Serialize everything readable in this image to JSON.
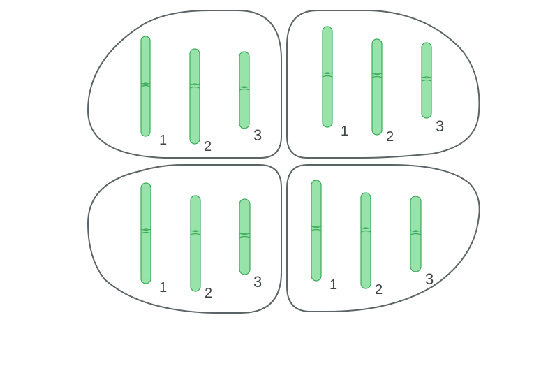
{
  "colors": {
    "cell_outline": "#5b6466",
    "chromosome_fill": "#98e3a9",
    "chromosome_stroke": "#3daa5a",
    "label": "#3d4446"
  },
  "cells": [
    {
      "chromosomes": [
        {
          "label": "1"
        },
        {
          "label": "2"
        },
        {
          "label": "3"
        }
      ]
    },
    {
      "chromosomes": [
        {
          "label": "1"
        },
        {
          "label": "2"
        },
        {
          "label": "3"
        }
      ]
    },
    {
      "chromosomes": [
        {
          "label": "1"
        },
        {
          "label": "2"
        },
        {
          "label": "3"
        }
      ]
    },
    {
      "chromosomes": [
        {
          "label": "1"
        },
        {
          "label": "2"
        },
        {
          "label": "3"
        }
      ]
    }
  ]
}
